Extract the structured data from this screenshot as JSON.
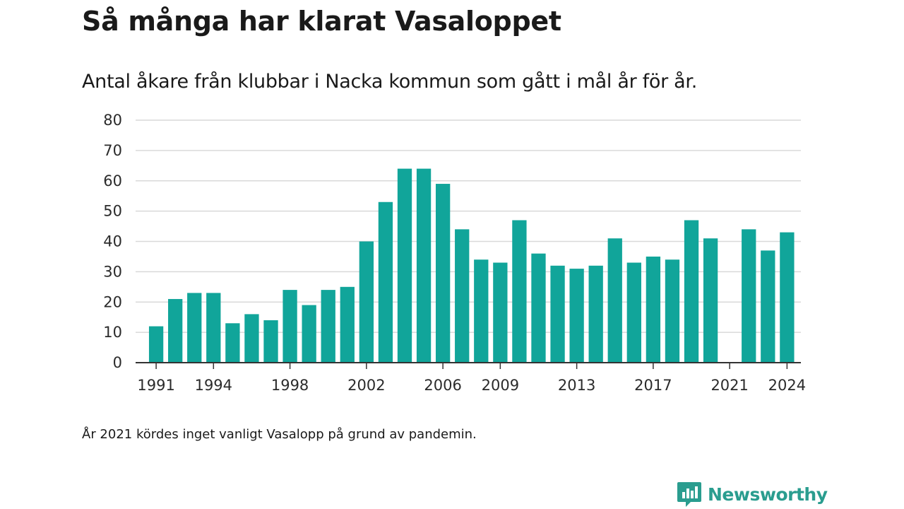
{
  "title": "Så många har klarat Vasaloppet",
  "subtitle": "Antal åkare från klubbar i Nacka kommun som gått i mål år för år.",
  "footnote": "År 2021 kördes inget vanligt Vasalopp på grund av pandemin.",
  "brand": {
    "name": "Newsworthy",
    "icon": "newsworthy-logo-icon",
    "color": "#2a9d8f"
  },
  "chart_data": {
    "type": "bar",
    "bar_color": "#11a59a",
    "x": [
      1991,
      1992,
      1993,
      1994,
      1995,
      1996,
      1997,
      1998,
      1999,
      2000,
      2001,
      2002,
      2003,
      2004,
      2005,
      2006,
      2007,
      2008,
      2009,
      2010,
      2011,
      2012,
      2013,
      2014,
      2015,
      2016,
      2017,
      2018,
      2019,
      2020,
      2021,
      2022,
      2023,
      2024
    ],
    "values": [
      12,
      21,
      23,
      23,
      13,
      16,
      14,
      24,
      19,
      24,
      25,
      40,
      53,
      64,
      64,
      59,
      44,
      34,
      33,
      47,
      36,
      32,
      31,
      32,
      41,
      33,
      35,
      34,
      47,
      41,
      null,
      44,
      37,
      43
    ],
    "x_ticks": [
      1991,
      1994,
      1998,
      2002,
      2006,
      2009,
      2013,
      2017,
      2021,
      2024
    ],
    "y_ticks": [
      0,
      10,
      20,
      30,
      40,
      50,
      60,
      70,
      80
    ],
    "ylim": [
      0,
      80
    ],
    "grid": true
  }
}
